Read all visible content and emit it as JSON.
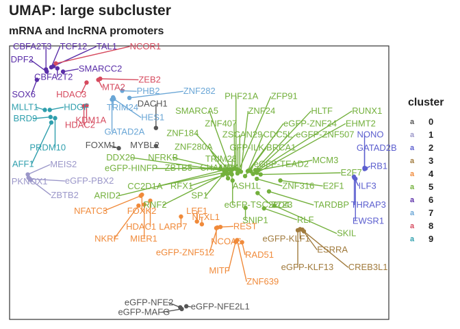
{
  "chart_data": {
    "type": "scatter",
    "title": "UMAP: large subcluster",
    "subtitle": "mRNA and lncRNA promoters",
    "xlabel": "",
    "ylabel": "",
    "xlim": [
      0,
      100
    ],
    "ylim": [
      0,
      100
    ],
    "grid": false,
    "legend": {
      "title": "cluster",
      "position": "right",
      "entries": [
        "0",
        "1",
        "2",
        "3",
        "4",
        "5",
        "6",
        "7",
        "8",
        "9"
      ]
    },
    "colors": {
      "0": "#555555",
      "1": "#9b97c9",
      "2": "#5c5fcf",
      "3": "#a07a3c",
      "4": "#f08a3a",
      "5": "#73b03c",
      "6": "#5a2ea8",
      "7": "#6aa6d6",
      "8": "#d64a5e",
      "9": "#2f9fad"
    },
    "points": [
      {
        "label": "CBFA2T3",
        "cluster": "6",
        "x": 9.6,
        "y": 91.4,
        "lx": 0.9,
        "ly": 98.8
      },
      {
        "label": "TCF12",
        "cluster": "6",
        "x": 11.0,
        "y": 92.2,
        "lx": 13.3,
        "ly": 98.8
      },
      {
        "label": "TAL1",
        "cluster": "6",
        "x": 11.6,
        "y": 92.6,
        "lx": 22.9,
        "ly": 98.8
      },
      {
        "label": "NCOR1",
        "cluster": "8",
        "x": 12.2,
        "y": 93.6,
        "lx": 31.7,
        "ly": 98.8
      },
      {
        "label": "DPF2",
        "cluster": "6",
        "x": 9.8,
        "y": 90.6,
        "lx": 0.3,
        "ly": 94.0
      },
      {
        "label": "SMARCC2",
        "cluster": "6",
        "x": 14.1,
        "y": 90.6,
        "lx": 18.2,
        "ly": 90.6
      },
      {
        "label": "CBFA2T2",
        "cluster": "6",
        "x": 12.6,
        "y": 91.8,
        "lx": 6.5,
        "ly": 87.6
      },
      {
        "label": "MTA2",
        "cluster": "8",
        "x": 23.4,
        "y": 87.6,
        "lx": 24.4,
        "ly": 83.8
      },
      {
        "label": "ZEB2",
        "cluster": "8",
        "x": 23.9,
        "y": 88.0,
        "lx": 34.0,
        "ly": 86.6
      },
      {
        "label": "SOX6",
        "cluster": "6",
        "x": 7.2,
        "y": 87.6,
        "lx": 0.6,
        "ly": 81.2
      },
      {
        "label": "HDAC3",
        "cluster": "8",
        "x": 20.3,
        "y": 86.6,
        "lx": 12.3,
        "ly": 81.2
      },
      {
        "label": "PHB2",
        "cluster": "7",
        "x": 29.7,
        "y": 83.6,
        "lx": 33.5,
        "ly": 82.4
      },
      {
        "label": "ZNF282",
        "cluster": "7",
        "x": 31.6,
        "y": 81.0,
        "lx": 45.8,
        "ly": 82.4
      },
      {
        "label": "DACH1",
        "cluster": "0",
        "x": 38.6,
        "y": 70.0,
        "lx": 33.7,
        "ly": 77.8
      },
      {
        "label": "MLLT1",
        "cluster": "9",
        "x": 9.3,
        "y": 76.6,
        "lx": 0.5,
        "ly": 76.6
      },
      {
        "label": "HDGF",
        "cluster": "9",
        "x": 10.6,
        "y": 76.6,
        "lx": 14.3,
        "ly": 76.6
      },
      {
        "label": "TRIM24",
        "cluster": "7",
        "x": 27.3,
        "y": 81.2,
        "lx": 25.6,
        "ly": 76.4
      },
      {
        "label": "KDM1A",
        "cluster": "8",
        "x": 20.3,
        "y": 78.2,
        "lx": 17.4,
        "ly": 71.8
      },
      {
        "label": "HES1",
        "cluster": "7",
        "x": 27.5,
        "y": 80.6,
        "lx": 34.7,
        "ly": 72.8
      },
      {
        "label": "BRD9",
        "cluster": "9",
        "x": 10.8,
        "y": 74.0,
        "lx": 1.0,
        "ly": 72.4
      },
      {
        "label": "HDAC2",
        "cluster": "8",
        "x": 19.6,
        "y": 78.0,
        "lx": 14.6,
        "ly": 70.0
      },
      {
        "label": "GATAD2A",
        "cluster": "7",
        "x": 27.0,
        "y": 80.4,
        "lx": 25.0,
        "ly": 67.6
      },
      {
        "label": "FOXM1",
        "cluster": "0",
        "x": 28.8,
        "y": 62.6,
        "lx": 20.0,
        "ly": 62.6
      },
      {
        "label": "MYBL2",
        "cluster": "0",
        "x": 38.6,
        "y": 63.4,
        "lx": 31.8,
        "ly": 62.6
      },
      {
        "label": "PRDM10",
        "cluster": "9",
        "x": 12.0,
        "y": 73.6,
        "lx": 5.3,
        "ly": 61.8
      },
      {
        "label": "AFF1",
        "cluster": "9",
        "x": 11.0,
        "y": 72.0,
        "lx": 0.7,
        "ly": 55.8
      },
      {
        "label": "MEIS2",
        "cluster": "1",
        "x": 4.8,
        "y": 53.0,
        "lx": 10.7,
        "ly": 55.6
      },
      {
        "label": "eGFP-PBX2",
        "cluster": "1",
        "x": 5.3,
        "y": 51.4,
        "lx": 14.6,
        "ly": 49.6
      },
      {
        "label": "PKNOX1",
        "cluster": "1",
        "x": 5.0,
        "y": 51.8,
        "lx": 0.5,
        "ly": 49.4
      },
      {
        "label": "ZBTB2",
        "cluster": "1",
        "x": 5.6,
        "y": 51.0,
        "lx": 10.9,
        "ly": 44.4
      },
      {
        "label": "PHF21A",
        "cluster": "5",
        "x": 59.7,
        "y": 55.0,
        "lx": 56.7,
        "ly": 80.6
      },
      {
        "label": "ZFP91",
        "cluster": "5",
        "x": 60.1,
        "y": 53.4,
        "lx": 68.9,
        "ly": 80.6
      },
      {
        "label": "SMARCA5",
        "cluster": "5",
        "x": 58.3,
        "y": 54.6,
        "lx": 43.7,
        "ly": 75.2
      },
      {
        "label": "ZNF24",
        "cluster": "5",
        "x": 61.0,
        "y": 54.0,
        "lx": 62.9,
        "ly": 75.2
      },
      {
        "label": "HLTF",
        "cluster": "5",
        "x": 64.8,
        "y": 54.6,
        "lx": 79.5,
        "ly": 75.2
      },
      {
        "label": "RUNX1",
        "cluster": "5",
        "x": 65.6,
        "y": 54.6,
        "lx": 90.3,
        "ly": 75.2
      },
      {
        "label": "ZNF407",
        "cluster": "5",
        "x": 59.4,
        "y": 55.4,
        "lx": 51.5,
        "ly": 70.6
      },
      {
        "label": "eGFP-ZNF24",
        "cluster": "5",
        "x": 63.0,
        "y": 54.4,
        "lx": 72.2,
        "ly": 70.6
      },
      {
        "label": "EHMT2",
        "cluster": "5",
        "x": 65.2,
        "y": 53.6,
        "lx": 88.6,
        "ly": 70.6
      },
      {
        "label": "ZNF184",
        "cluster": "5",
        "x": 58.4,
        "y": 53.6,
        "lx": 41.4,
        "ly": 67.0
      },
      {
        "label": "ZSCAN29",
        "cluster": "5",
        "x": 60.7,
        "y": 54.4,
        "lx": 56.1,
        "ly": 66.6
      },
      {
        "label": "CDC5L",
        "cluster": "5",
        "x": 62.8,
        "y": 54.2,
        "lx": 66.9,
        "ly": 66.6
      },
      {
        "label": "eGFP-ZNF507",
        "cluster": "5",
        "x": 64.2,
        "y": 53.2,
        "lx": 75.5,
        "ly": 66.6
      },
      {
        "label": "NONO",
        "cluster": "2",
        "x": 93.6,
        "y": 55.0,
        "lx": 91.6,
        "ly": 66.6
      },
      {
        "label": "ZNF280A",
        "cluster": "5",
        "x": 57.6,
        "y": 51.6,
        "lx": 43.5,
        "ly": 62.0
      },
      {
        "label": "GFP-ILK",
        "cluster": "5",
        "x": 60.2,
        "y": 53.8,
        "lx": 58.0,
        "ly": 61.8
      },
      {
        "label": "BRCA1",
        "cluster": "5",
        "x": 62.1,
        "y": 52.4,
        "lx": 67.7,
        "ly": 61.8
      },
      {
        "label": "GATAD2B",
        "cluster": "2",
        "x": 93.6,
        "y": 55.4,
        "lx": 91.5,
        "ly": 61.6
      },
      {
        "label": "DDX20",
        "cluster": "5",
        "x": 56.6,
        "y": 54.4,
        "lx": 25.5,
        "ly": 58.2
      },
      {
        "label": "NFRKB",
        "cluster": "5",
        "x": 57.1,
        "y": 54.6,
        "lx": 36.5,
        "ly": 58.2
      },
      {
        "label": "TRIM28",
        "cluster": "5",
        "x": 58.7,
        "y": 54.8,
        "lx": 51.6,
        "ly": 57.6
      },
      {
        "label": "MCM3",
        "cluster": "5",
        "x": 65.6,
        "y": 54.6,
        "lx": 79.8,
        "ly": 57.2
      },
      {
        "label": "eGFP-TEAD2",
        "cluster": "5",
        "x": 63.6,
        "y": 54.2,
        "lx": 64.4,
        "ly": 55.8
      },
      {
        "label": "eGFP-HINFP",
        "cluster": "5",
        "x": 55.6,
        "y": 55.2,
        "lx": 25.1,
        "ly": 54.2
      },
      {
        "label": "ZBTB5",
        "cluster": "5",
        "x": 57.3,
        "y": 54.6,
        "lx": 40.9,
        "ly": 54.4
      },
      {
        "label": "CHAMP1",
        "cluster": "5",
        "x": 57.7,
        "y": 54.8,
        "lx": 50.2,
        "ly": 54.4
      },
      {
        "label": "MGA",
        "cluster": "5",
        "x": 58.2,
        "y": 54.6,
        "lx": 55.4,
        "ly": 54.4
      },
      {
        "label": "RB1",
        "cluster": "2",
        "x": 93.9,
        "y": 55.2,
        "lx": 95.1,
        "ly": 55.0
      },
      {
        "label": "E2F7",
        "cluster": "5",
        "x": 66.2,
        "y": 53.0,
        "lx": 87.3,
        "ly": 52.6
      },
      {
        "label": "ARID2",
        "cluster": "5",
        "x": 56.5,
        "y": 54.6,
        "lx": 22.3,
        "ly": 44.2
      },
      {
        "label": "CC2D1A",
        "cluster": "5",
        "x": 57.0,
        "y": 53.8,
        "lx": 31.1,
        "ly": 47.6
      },
      {
        "label": "RFX1",
        "cluster": "5",
        "x": 57.5,
        "y": 53.2,
        "lx": 42.4,
        "ly": 47.8
      },
      {
        "label": "ASH1L",
        "cluster": "5",
        "x": 58.6,
        "y": 53.0,
        "lx": 58.8,
        "ly": 47.8
      },
      {
        "label": "ILF3",
        "cluster": "2",
        "x": 90.8,
        "y": 52.2,
        "lx": 92.0,
        "ly": 47.8
      },
      {
        "label": "ZNF316",
        "cluster": "5",
        "x": 65.2,
        "y": 51.4,
        "lx": 71.9,
        "ly": 47.8
      },
      {
        "label": "E2F1",
        "cluster": "5",
        "x": 71.4,
        "y": 50.8,
        "lx": 82.6,
        "ly": 47.8
      },
      {
        "label": "SP1",
        "cluster": "5",
        "x": 56.5,
        "y": 53.2,
        "lx": 47.9,
        "ly": 44.2
      },
      {
        "label": "RNF2",
        "cluster": "5",
        "x": 56.2,
        "y": 52.8,
        "lx": 35.3,
        "ly": 40.8
      },
      {
        "label": "eGFP-TSC22D4",
        "cluster": "5",
        "x": 58.8,
        "y": 50.8,
        "lx": 56.6,
        "ly": 40.8
      },
      {
        "label": "ZZZ3",
        "cluster": "5",
        "x": 65.4,
        "y": 46.2,
        "lx": 69.0,
        "ly": 40.8
      },
      {
        "label": "TARDBP",
        "cluster": "5",
        "x": 68.4,
        "y": 46.8,
        "lx": 80.2,
        "ly": 40.8
      },
      {
        "label": "THRAP3",
        "cluster": "2",
        "x": 90.9,
        "y": 51.8,
        "lx": 90.0,
        "ly": 40.8
      },
      {
        "label": "NFATC3",
        "cluster": "4",
        "x": 34.6,
        "y": 45.2,
        "lx": 17.0,
        "ly": 38.6
      },
      {
        "label": "FOXK2",
        "cluster": "4",
        "x": 34.9,
        "y": 45.6,
        "lx": 31.0,
        "ly": 38.6
      },
      {
        "label": "LEF1",
        "cluster": "4",
        "x": 49.4,
        "y": 35.8,
        "lx": 46.6,
        "ly": 38.6
      },
      {
        "label": "NFXL1",
        "cluster": "4",
        "x": 50.7,
        "y": 34.8,
        "lx": 48.1,
        "ly": 36.4
      },
      {
        "label": "SNIP1",
        "cluster": "5",
        "x": 62.2,
        "y": 40.8,
        "lx": 61.4,
        "ly": 35.2
      },
      {
        "label": "RLF",
        "cluster": "5",
        "x": 67.1,
        "y": 40.6,
        "lx": 75.8,
        "ly": 35.4
      },
      {
        "label": "EWSR1",
        "cluster": "2",
        "x": 91.2,
        "y": 51.4,
        "lx": 90.4,
        "ly": 35.0
      },
      {
        "label": "HDAC1",
        "cluster": "4",
        "x": 37.1,
        "y": 43.4,
        "lx": 30.7,
        "ly": 32.8
      },
      {
        "label": "LARP7",
        "cluster": "4",
        "x": 45.2,
        "y": 37.6,
        "lx": 39.4,
        "ly": 32.8
      },
      {
        "label": "REST",
        "cluster": "4",
        "x": 55.6,
        "y": 33.8,
        "lx": 59.0,
        "ly": 33.0
      },
      {
        "label": "SKIL",
        "cluster": "5",
        "x": 69.8,
        "y": 41.6,
        "lx": 86.3,
        "ly": 30.4
      },
      {
        "label": "NKRF",
        "cluster": "4",
        "x": 34.0,
        "y": 41.6,
        "lx": 22.4,
        "ly": 28.4
      },
      {
        "label": "MIER1",
        "cluster": "4",
        "x": 35.5,
        "y": 42.0,
        "lx": 31.8,
        "ly": 28.4
      },
      {
        "label": "NCOA6",
        "cluster": "4",
        "x": 54.5,
        "y": 33.4,
        "lx": 53.1,
        "ly": 27.4
      },
      {
        "label": "eGFP-KLF1",
        "cluster": "3",
        "x": 76.6,
        "y": 33.0,
        "lx": 66.7,
        "ly": 28.4
      },
      {
        "label": "ESRRA",
        "cluster": "3",
        "x": 77.2,
        "y": 32.8,
        "lx": 81.1,
        "ly": 24.4
      },
      {
        "label": "eGFP-ZNF512",
        "cluster": "4",
        "x": 54.8,
        "y": 33.6,
        "lx": 38.6,
        "ly": 23.4
      },
      {
        "label": "RAD51",
        "cluster": "4",
        "x": 61.3,
        "y": 28.2,
        "lx": 62.1,
        "ly": 22.6
      },
      {
        "label": "eGFP-KLF13",
        "cluster": "3",
        "x": 76.0,
        "y": 32.6,
        "lx": 71.6,
        "ly": 18.0
      },
      {
        "label": "CREB3L1",
        "cluster": "3",
        "x": 77.6,
        "y": 32.2,
        "lx": 89.3,
        "ly": 18.0
      },
      {
        "label": "MITF",
        "cluster": "4",
        "x": 59.6,
        "y": 28.4,
        "lx": 52.6,
        "ly": 16.8
      },
      {
        "label": "ZNF639",
        "cluster": "4",
        "x": 60.0,
        "y": 29.0,
        "lx": 62.5,
        "ly": 12.8
      },
      {
        "label": "eGFP-NFE2",
        "cluster": "0",
        "x": 45.0,
        "y": 4.4,
        "lx": 30.3,
        "ly": 5.2
      },
      {
        "label": "eGFP-NFE2L1",
        "cluster": "0",
        "x": 46.6,
        "y": 4.8,
        "lx": 47.8,
        "ly": 3.6
      },
      {
        "label": "eGFP-MAFG",
        "cluster": "0",
        "x": 45.4,
        "y": 3.8,
        "lx": 28.6,
        "ly": 1.6
      }
    ]
  }
}
